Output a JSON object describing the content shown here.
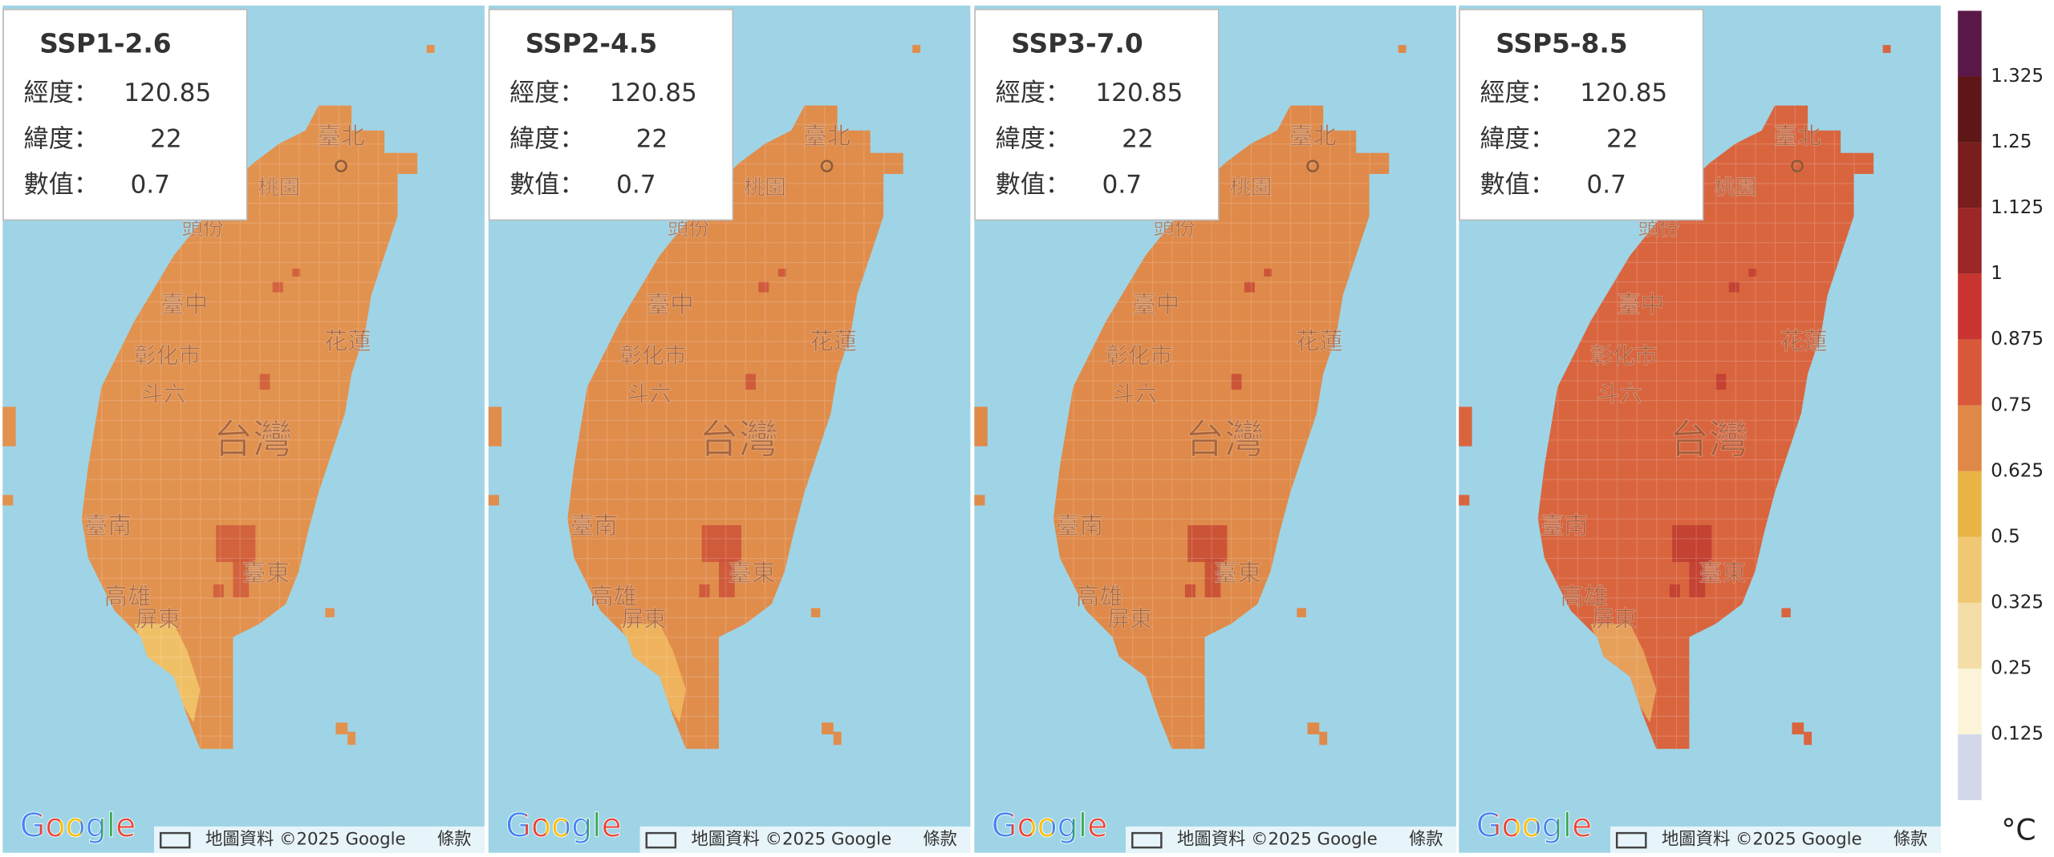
{
  "panels": [
    {
      "title": "SSP1-2.6",
      "fill": "#e2924f",
      "hot": "#cf5a3a",
      "south": "#f0c066",
      "info": {
        "lon_label": "經度：",
        "lon": 120.85,
        "lat_label": "緯度：",
        "lat": 22,
        "value_label": "數值：",
        "value": 0.7
      }
    },
    {
      "title": "SSP2-4.5",
      "fill": "#e08d4c",
      "hot": "#cc5238",
      "south": "#eeb35c",
      "info": {
        "lon_label": "經度：",
        "lon": 120.85,
        "lat_label": "緯度：",
        "lat": 22,
        "value_label": "數值：",
        "value": 0.7
      }
    },
    {
      "title": "SSP3-7.0",
      "fill": "#df8a4a",
      "hot": "#c84a34",
      "south": "#df8a4a",
      "info": {
        "lon_label": "經度：",
        "lon": 120.85,
        "lat_label": "緯度：",
        "lat": 22,
        "value_label": "數值：",
        "value": 0.7
      }
    },
    {
      "title": "SSP5-8.5",
      "fill": "#d9653f",
      "hot": "#c03c30",
      "south": "#e6a05a",
      "info": {
        "lon_label": "經度：",
        "lon": 120.85,
        "lat_label": "緯度：",
        "lat": 22,
        "value_label": "數值：",
        "value": 0.7
      }
    }
  ],
  "map_labels": [
    "臺北",
    "桃園",
    "頭份",
    "臺中",
    "彰化市",
    "斗六",
    "台灣",
    "花蓮",
    "臺南",
    "高雄",
    "屏東",
    "臺東"
  ],
  "footer": {
    "logo": "Google",
    "attribution": "地圖資料 ©2025 Google",
    "terms": "條款"
  },
  "legend": {
    "ticks": [
      1.325,
      1.25,
      1.125,
      1,
      0.875,
      0.75,
      0.625,
      0.5,
      0.325,
      0.25,
      0.125
    ],
    "colors": [
      "#5a1848",
      "#5e1616",
      "#7a1d1d",
      "#9c2727",
      "#c93431",
      "#d9583a",
      "#e08847",
      "#e8b445",
      "#f0c874",
      "#f5dda8",
      "#fbf4d8",
      "#d2d7ea"
    ],
    "unit": "°C"
  }
}
